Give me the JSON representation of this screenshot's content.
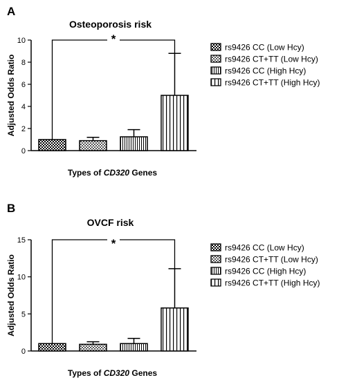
{
  "chart_data": [
    {
      "type": "bar",
      "panel_label": "A",
      "title": "Osteoporosis risk",
      "xlabel_parts": [
        {
          "text": "Types of ",
          "italic": false
        },
        {
          "text": "CD320",
          "italic": true
        },
        {
          "text": " Genes",
          "italic": false
        }
      ],
      "ylabel": "Adjusted Odds Ratio",
      "ylim": [
        0,
        10
      ],
      "yticks": [
        "0",
        "2",
        "4",
        "6",
        "8",
        "10"
      ],
      "ytick_values": [
        0,
        2,
        4,
        6,
        8,
        10
      ],
      "categories": [
        "rs9426 CC (Low Hcy)",
        "rs9426 CT+TT (Low Hcy)",
        "rs9426 CC (High Hcy)",
        "rs9426 CT+TT (High Hcy)"
      ],
      "values": [
        1.0,
        0.9,
        1.25,
        5.0
      ],
      "error_upper": [
        1.0,
        1.2,
        1.9,
        8.8
      ],
      "patterns": [
        "dense-check",
        "light-check",
        "vertical-stripes",
        "wide-vertical-stripes"
      ],
      "significance": {
        "label": "*",
        "from": 0,
        "to": 3,
        "level": 10
      },
      "legend_position": "right"
    },
    {
      "type": "bar",
      "panel_label": "B",
      "title": "OVCF risk",
      "xlabel_parts": [
        {
          "text": "Types of ",
          "italic": false
        },
        {
          "text": "CD320",
          "italic": true
        },
        {
          "text": " Genes",
          "italic": false
        }
      ],
      "ylabel": "Adjusted Odds Ratio",
      "ylim": [
        0,
        15
      ],
      "yticks": [
        "0",
        "5",
        "10",
        "15"
      ],
      "ytick_values": [
        0,
        5,
        10,
        15
      ],
      "categories": [
        "rs9426 CC (Low Hcy)",
        "rs9426 CT+TT (Low Hcy)",
        "rs9426 CC (High Hcy)",
        "rs9426 CT+TT (High Hcy)"
      ],
      "values": [
        1.0,
        0.9,
        1.0,
        5.8
      ],
      "error_upper": [
        1.0,
        1.25,
        1.7,
        11.1
      ],
      "patterns": [
        "dense-check",
        "light-check",
        "vertical-stripes",
        "wide-vertical-stripes"
      ],
      "significance": {
        "label": "*",
        "from": 0,
        "to": 3,
        "level": 15
      },
      "legend_position": "right"
    }
  ]
}
